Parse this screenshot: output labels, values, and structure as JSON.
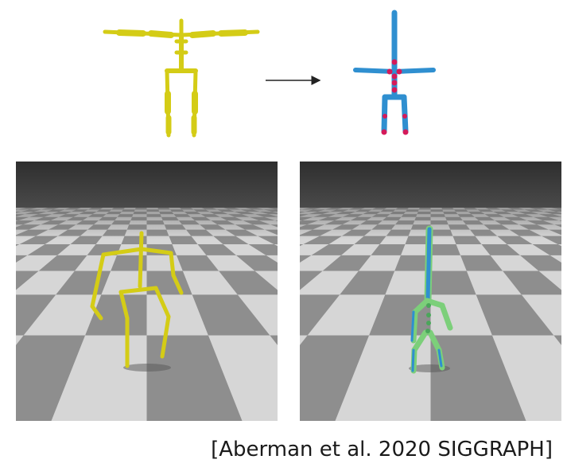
{
  "caption": "[Aberman et al. 2020 SIGGRAPH]",
  "colors": {
    "source_skeleton": "#d4cc16",
    "target_skeleton": "#2f8fd0",
    "target_joints": "#d41a5a",
    "retargeted_overlay": "#7ccf7a",
    "sky": "#3d3d3d",
    "floor_light": "#d6d6d6",
    "floor_dark": "#8e8e8e"
  },
  "icons": {
    "arrow": "right-arrow"
  }
}
